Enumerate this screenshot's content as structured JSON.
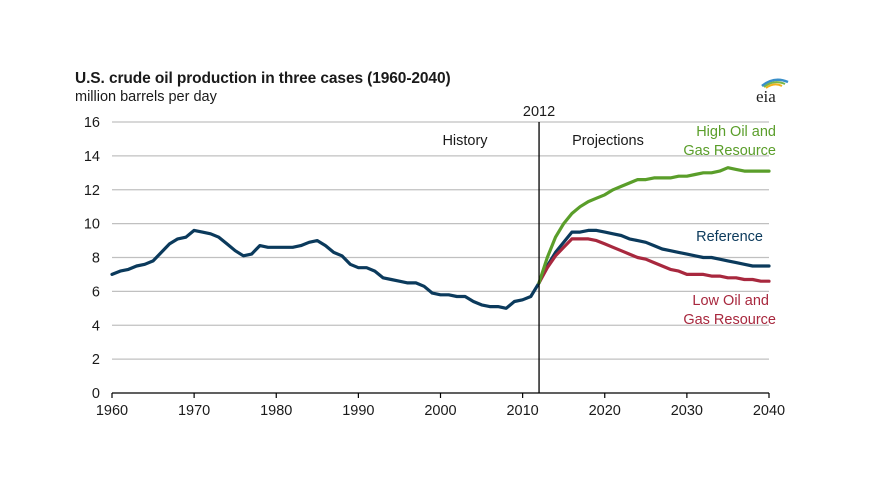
{
  "header": {
    "title": "U.S. crude oil production in three cases (1960-2040)",
    "subtitle": "million barrels per day",
    "logo_text": "eia",
    "logo_icon": "eia-logo-icon"
  },
  "chart_data": {
    "type": "line",
    "title": "U.S. crude oil production in three cases (1960-2040)",
    "ylabel": "million barrels per day",
    "xlabel": "",
    "xlim": [
      1960,
      2040
    ],
    "ylim": [
      0,
      16
    ],
    "x_ticks": [
      "1960",
      "1970",
      "1980",
      "1990",
      "2000",
      "2010",
      "2020",
      "2030",
      "2040"
    ],
    "y_ticks": [
      "0",
      "2",
      "4",
      "6",
      "8",
      "10",
      "12",
      "14",
      "16"
    ],
    "grid": "horizontal",
    "divider": {
      "year": 2012,
      "label": "2012",
      "left_label": "History",
      "right_label": "Projections"
    },
    "colors": {
      "history": "#0b3a5c",
      "reference": "#0b3a5c",
      "high": "#5a9e2a",
      "low": "#a8283e",
      "grid": "#c0c0c0",
      "axis": "#000000"
    },
    "series": [
      {
        "name": "History",
        "label": "",
        "color": "#0b3a5c",
        "x": [
          1960,
          1961,
          1962,
          1963,
          1964,
          1965,
          1966,
          1967,
          1968,
          1969,
          1970,
          1971,
          1972,
          1973,
          1974,
          1975,
          1976,
          1977,
          1978,
          1979,
          1980,
          1981,
          1982,
          1983,
          1984,
          1985,
          1986,
          1987,
          1988,
          1989,
          1990,
          1991,
          1992,
          1993,
          1994,
          1995,
          1996,
          1997,
          1998,
          1999,
          2000,
          2001,
          2002,
          2003,
          2004,
          2005,
          2006,
          2007,
          2008,
          2009,
          2010,
          2011,
          2012
        ],
        "y": [
          7.0,
          7.2,
          7.3,
          7.5,
          7.6,
          7.8,
          8.3,
          8.8,
          9.1,
          9.2,
          9.6,
          9.5,
          9.4,
          9.2,
          8.8,
          8.4,
          8.1,
          8.2,
          8.7,
          8.6,
          8.6,
          8.6,
          8.6,
          8.7,
          8.9,
          9.0,
          8.7,
          8.3,
          8.1,
          7.6,
          7.4,
          7.4,
          7.2,
          6.8,
          6.7,
          6.6,
          6.5,
          6.5,
          6.3,
          5.9,
          5.8,
          5.8,
          5.7,
          5.7,
          5.4,
          5.2,
          5.1,
          5.1,
          5.0,
          5.4,
          5.5,
          5.7,
          6.5
        ]
      },
      {
        "name": "Reference",
        "label": "Reference",
        "color": "#0b3a5c",
        "x": [
          2012,
          2013,
          2014,
          2015,
          2016,
          2017,
          2018,
          2019,
          2020,
          2021,
          2022,
          2023,
          2024,
          2025,
          2026,
          2027,
          2028,
          2029,
          2030,
          2031,
          2032,
          2033,
          2034,
          2035,
          2036,
          2037,
          2038,
          2039,
          2040
        ],
        "y": [
          6.5,
          7.5,
          8.3,
          8.9,
          9.5,
          9.5,
          9.6,
          9.6,
          9.5,
          9.4,
          9.3,
          9.1,
          9.0,
          8.9,
          8.7,
          8.5,
          8.4,
          8.3,
          8.2,
          8.1,
          8.0,
          8.0,
          7.9,
          7.8,
          7.7,
          7.6,
          7.5,
          7.5,
          7.5
        ]
      },
      {
        "name": "High Oil and Gas Resource",
        "label": "High Oil and Gas Resource",
        "color": "#5a9e2a",
        "x": [
          2012,
          2013,
          2014,
          2015,
          2016,
          2017,
          2018,
          2019,
          2020,
          2021,
          2022,
          2023,
          2024,
          2025,
          2026,
          2027,
          2028,
          2029,
          2030,
          2031,
          2032,
          2033,
          2034,
          2035,
          2036,
          2037,
          2038,
          2039,
          2040
        ],
        "y": [
          6.5,
          8.0,
          9.2,
          10.0,
          10.6,
          11.0,
          11.3,
          11.5,
          11.7,
          12.0,
          12.2,
          12.4,
          12.6,
          12.6,
          12.7,
          12.7,
          12.7,
          12.8,
          12.8,
          12.9,
          13.0,
          13.0,
          13.1,
          13.3,
          13.2,
          13.1,
          13.1,
          13.1,
          13.1
        ]
      },
      {
        "name": "Low Oil and Gas Resource",
        "label": "Low Oil and Gas Resource",
        "color": "#a8283e",
        "x": [
          2012,
          2013,
          2014,
          2015,
          2016,
          2017,
          2018,
          2019,
          2020,
          2021,
          2022,
          2023,
          2024,
          2025,
          2026,
          2027,
          2028,
          2029,
          2030,
          2031,
          2032,
          2033,
          2034,
          2035,
          2036,
          2037,
          2038,
          2039,
          2040
        ],
        "y": [
          6.5,
          7.4,
          8.1,
          8.6,
          9.1,
          9.1,
          9.1,
          9.0,
          8.8,
          8.6,
          8.4,
          8.2,
          8.0,
          7.9,
          7.7,
          7.5,
          7.3,
          7.2,
          7.0,
          7.0,
          7.0,
          6.9,
          6.9,
          6.8,
          6.8,
          6.7,
          6.7,
          6.6,
          6.6
        ]
      }
    ],
    "annotations": [
      {
        "text": "High Oil and",
        "series": "High Oil and Gas Resource"
      },
      {
        "text": "Gas Resource",
        "series": "High Oil and Gas Resource"
      },
      {
        "text": "Reference",
        "series": "Reference"
      },
      {
        "text": "Low Oil and",
        "series": "Low Oil and Gas Resource"
      },
      {
        "text": "Gas Resource",
        "series": "Low Oil and Gas Resource"
      }
    ]
  }
}
